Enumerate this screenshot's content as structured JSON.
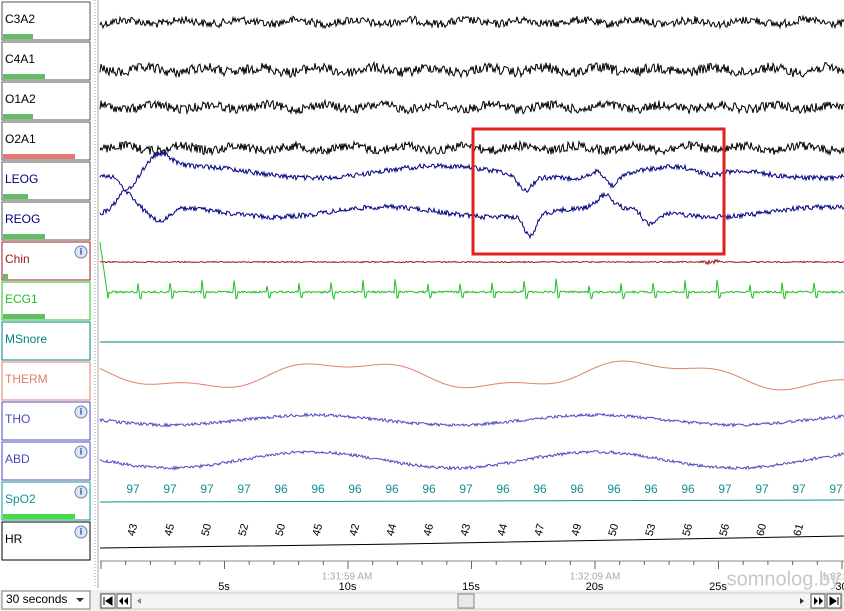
{
  "channels": [
    {
      "name": "C3A2",
      "color": "#000000"
    },
    {
      "name": "C4A1",
      "color": "#000000"
    },
    {
      "name": "O1A2",
      "color": "#000000"
    },
    {
      "name": "O2A1",
      "color": "#000000"
    },
    {
      "name": "LEOG",
      "color": "#000080"
    },
    {
      "name": "REOG",
      "color": "#000080"
    },
    {
      "name": "Chin",
      "color": "#a01818"
    },
    {
      "name": "ECG1",
      "color": "#20c020"
    },
    {
      "name": "MSnore",
      "color": "#008080"
    },
    {
      "name": "THERM",
      "color": "#e0806a"
    },
    {
      "name": "THO",
      "color": "#4a4ac0"
    },
    {
      "name": "ABD",
      "color": "#4a4ac0"
    },
    {
      "name": "SpO2",
      "color": "#109090"
    },
    {
      "name": "HR",
      "color": "#000000"
    }
  ],
  "spo2_values": [
    "97",
    "97",
    "97",
    "97",
    "96",
    "96",
    "96",
    "96",
    "96",
    "97",
    "96",
    "96",
    "96",
    "96",
    "96",
    "96",
    "97",
    "97",
    "97",
    "97"
  ],
  "hr_values": [
    "43",
    "45",
    "50",
    "52",
    "50",
    "45",
    "42",
    "44",
    "46",
    "43",
    "44",
    "47",
    "49",
    "50",
    "53",
    "56",
    "56",
    "60",
    "61"
  ],
  "time_ticks": [
    "5s",
    "10s",
    "15s",
    "20s",
    "25s",
    "30"
  ],
  "clock_labels": [
    "1:31:59 AM",
    "1:32:09 AM",
    "1:32:"
  ],
  "epoch_select": "30 seconds",
  "watermark": "somnolog.by"
}
